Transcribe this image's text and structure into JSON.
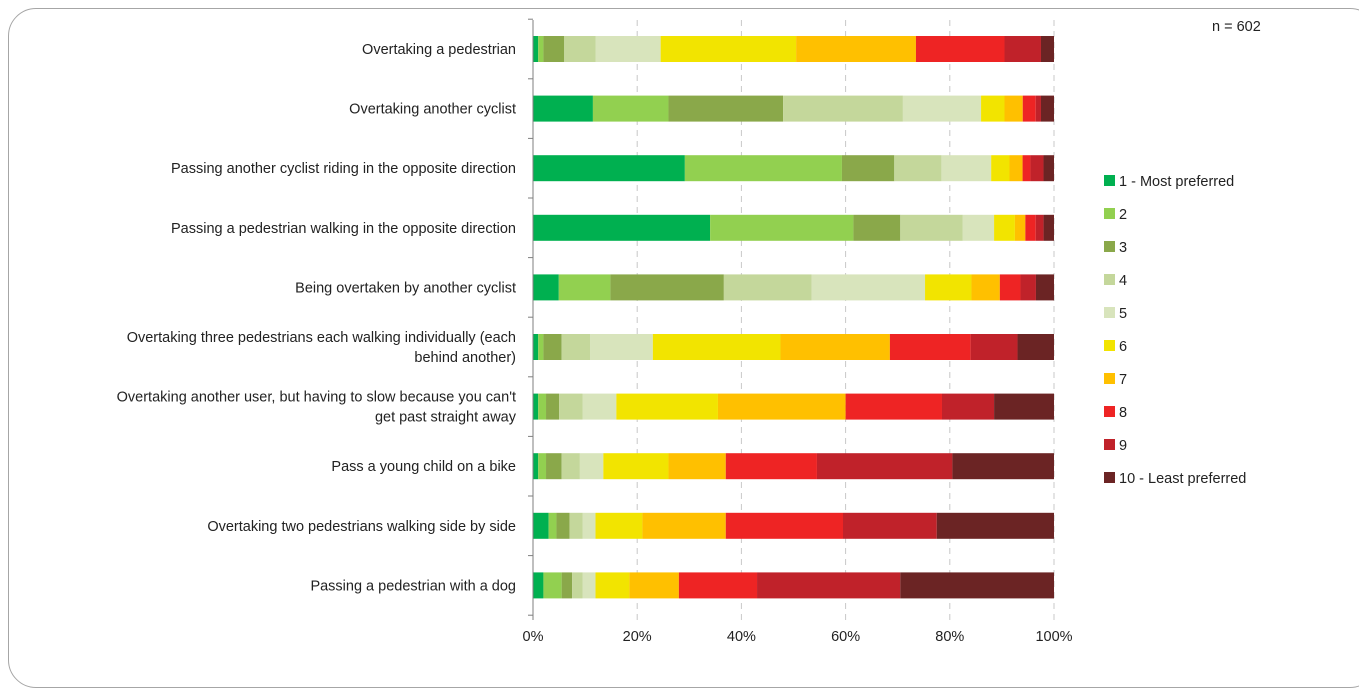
{
  "chart_data": {
    "type": "bar",
    "orientation": "horizontal",
    "stacked": true,
    "annotation": "n = 602",
    "title": "",
    "xlabel": "",
    "ylabel": "",
    "xlim": [
      0,
      100
    ],
    "x_ticks": [
      "0%",
      "20%",
      "40%",
      "60%",
      "80%",
      "100%"
    ],
    "grid": "vertical dashed",
    "legend_position": "right",
    "categories": [
      [
        "Overtaking a pedestrian"
      ],
      [
        "Overtaking another cyclist"
      ],
      [
        "Passing another cyclist riding in the opposite direction"
      ],
      [
        "Passing a pedestrian walking in the opposite direction"
      ],
      [
        "Being overtaken by another cyclist"
      ],
      [
        "Overtaking three pedestrians each walking individually (each",
        "behind another)"
      ],
      [
        "Overtaking another user, but having to slow because you can't",
        "get past straight away"
      ],
      [
        "Pass a young child on a bike"
      ],
      [
        "Overtaking two pedestrians walking side by side"
      ],
      [
        "Passing a pedestrian with a dog"
      ]
    ],
    "series": [
      {
        "name": "1 - Most preferred",
        "color": "#00b050",
        "values": [
          1,
          11.5,
          29,
          34,
          5,
          1,
          1,
          1,
          3,
          2
        ]
      },
      {
        "name": "2",
        "color": "#92d050",
        "values": [
          1,
          14.5,
          30,
          27.5,
          10,
          1,
          1.5,
          1.5,
          1.5,
          3.5
        ]
      },
      {
        "name": "3",
        "color": "#8aa84a",
        "values": [
          4,
          22,
          10,
          9,
          22,
          3.5,
          2.5,
          3,
          2.5,
          2
        ]
      },
      {
        "name": "4",
        "color": "#c4d79b",
        "values": [
          6,
          23,
          9,
          12,
          17,
          5.5,
          4.5,
          3.5,
          2.5,
          2
        ]
      },
      {
        "name": "5",
        "color": "#d8e4bc",
        "values": [
          12.5,
          15,
          9.5,
          6,
          22,
          12,
          6.5,
          4.5,
          2.5,
          2.5
        ]
      },
      {
        "name": "6",
        "color": "#f2e400",
        "values": [
          26,
          4.5,
          3.5,
          4,
          9,
          24.5,
          19.5,
          12.5,
          9,
          6.5
        ]
      },
      {
        "name": "7",
        "color": "#ffc000",
        "values": [
          23,
          3.5,
          2.5,
          2,
          5.5,
          21,
          24.5,
          11,
          16,
          9.5
        ]
      },
      {
        "name": "8",
        "color": "#ee2424",
        "values": [
          17,
          2.5,
          1.5,
          2,
          4,
          15.5,
          18.5,
          17.5,
          22.5,
          15
        ]
      },
      {
        "name": "9",
        "color": "#c0222a",
        "values": [
          7,
          1,
          2.5,
          1.5,
          3,
          9,
          10,
          26,
          18,
          27.5
        ]
      },
      {
        "name": "10 - Least preferred",
        "color": "#6b2424",
        "values": [
          2.5,
          2.5,
          2,
          2,
          3.5,
          7,
          11.5,
          19.5,
          22.5,
          29.5
        ]
      }
    ]
  }
}
